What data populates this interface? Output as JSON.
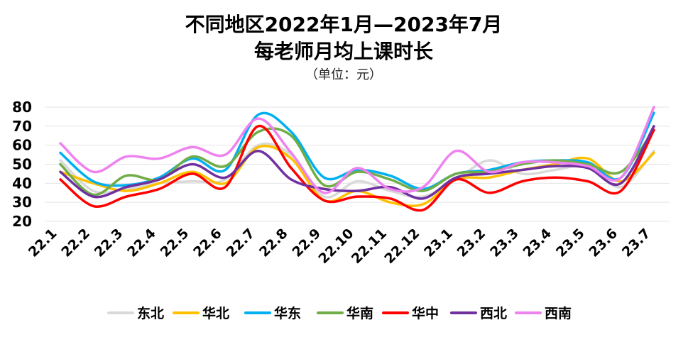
{
  "chart_data": {
    "type": "line",
    "title_line1": "不同地区2022年1月—2023年7月",
    "title_line2": "每老师月均上课时长",
    "subtitle": "（单位：元）",
    "ylim": [
      20,
      80
    ],
    "yticks": [
      "20",
      "30",
      "40",
      "50",
      "60",
      "70",
      "80"
    ],
    "categories": [
      "22.1",
      "22.2",
      "22.3",
      "22.4",
      "22.5",
      "22.6",
      "22.7",
      "22.8",
      "22.9",
      "22.10",
      "22.11",
      "22.12",
      "23.1",
      "23.2",
      "23.3",
      "23.4",
      "23.5",
      "23.6",
      "23.7"
    ],
    "series": [
      {
        "name": "东北",
        "color": "#d9d9d9",
        "values": [
          52,
          36,
          37,
          40,
          41,
          42,
          60,
          55,
          33,
          41,
          36,
          33,
          42,
          52,
          45,
          47,
          49,
          38,
          57
        ]
      },
      {
        "name": "华北",
        "color": "#ffc000",
        "values": [
          46,
          40,
          36,
          40,
          46,
          40,
          59,
          53,
          31,
          36,
          30,
          29,
          42,
          43,
          47,
          50,
          53,
          41,
          56
        ]
      },
      {
        "name": "华东",
        "color": "#00b0f0",
        "values": [
          56,
          41,
          39,
          43,
          53,
          47,
          76,
          67,
          43,
          47,
          44,
          37,
          45,
          47,
          51,
          52,
          51,
          43,
          77
        ]
      },
      {
        "name": "华南",
        "color": "#70ad47",
        "values": [
          50,
          34,
          44,
          42,
          54,
          49,
          67,
          65,
          39,
          46,
          42,
          36,
          45,
          46,
          50,
          52,
          50,
          46,
          68
        ]
      },
      {
        "name": "华中",
        "color": "#ff0000",
        "values": [
          42,
          28,
          33,
          37,
          45,
          38,
          70,
          48,
          31,
          33,
          32,
          26,
          42,
          35,
          41,
          43,
          41,
          36,
          68
        ]
      },
      {
        "name": "西北",
        "color": "#7030a0",
        "values": [
          46,
          33,
          38,
          42,
          50,
          43,
          57,
          42,
          37,
          36,
          38,
          32,
          43,
          45,
          47,
          49,
          48,
          40,
          70
        ]
      },
      {
        "name": "西南",
        "color": "#ee82ee",
        "values": [
          61,
          46,
          54,
          53,
          59,
          55,
          74,
          56,
          35,
          48,
          37,
          38,
          57,
          46,
          51,
          51,
          49,
          43,
          80
        ]
      }
    ]
  }
}
